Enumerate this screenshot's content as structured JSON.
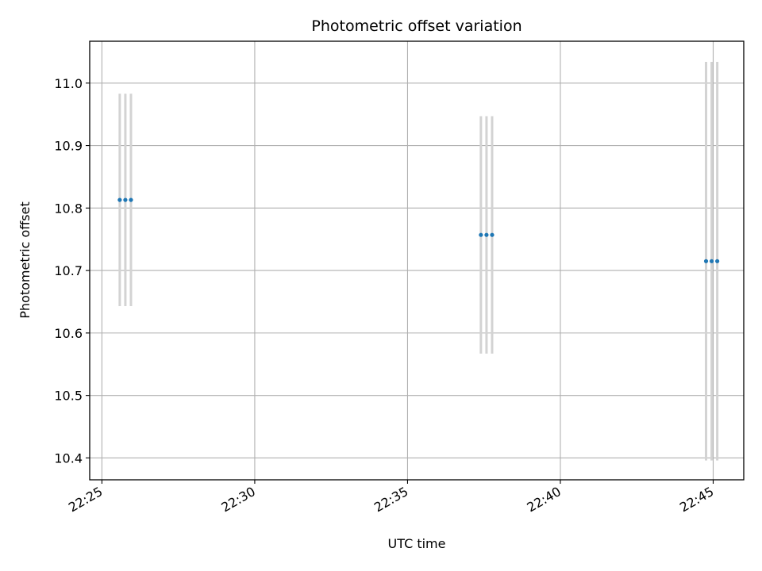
{
  "chart_data": {
    "type": "scatter",
    "title": "Photometric offset variation",
    "xlabel": "UTC time",
    "ylabel": "Photometric offset",
    "x_axis": {
      "kind": "time",
      "min": "22:24:36",
      "max": "22:46:00",
      "ticks": [
        "22:25",
        "22:30",
        "22:35",
        "22:40",
        "22:45"
      ]
    },
    "y_axis": {
      "min": 10.365,
      "max": 11.067,
      "ticks": [
        "10.4",
        "10.5",
        "10.6",
        "10.7",
        "10.8",
        "10.9",
        "11.0"
      ]
    },
    "grid": true,
    "legend": "none",
    "series": [
      {
        "marker_color": "#1f77b4",
        "errorbar_color": "#d3d3d3",
        "points": [
          {
            "x": "22:25:35",
            "y": 10.813,
            "yerr": 0.17
          },
          {
            "x": "22:25:46",
            "y": 10.813,
            "yerr": 0.17
          },
          {
            "x": "22:25:57",
            "y": 10.813,
            "yerr": 0.17
          },
          {
            "x": "22:37:24",
            "y": 10.757,
            "yerr": 0.19
          },
          {
            "x": "22:37:35",
            "y": 10.757,
            "yerr": 0.19
          },
          {
            "x": "22:37:46",
            "y": 10.757,
            "yerr": 0.19
          },
          {
            "x": "22:44:46",
            "y": 10.715,
            "yerr": 0.319
          },
          {
            "x": "22:44:57",
            "y": 10.715,
            "yerr": 0.319
          },
          {
            "x": "22:45:08",
            "y": 10.715,
            "yerr": 0.319
          }
        ]
      }
    ],
    "colors": {
      "grid": "#b0b0b0",
      "axes": "#000000"
    }
  }
}
